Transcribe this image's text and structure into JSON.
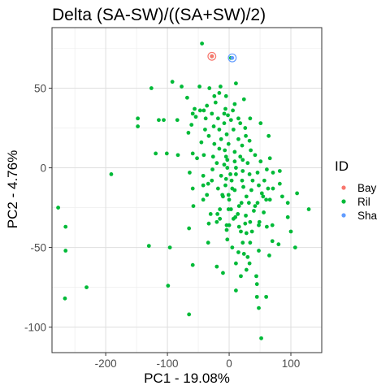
{
  "chart_data": {
    "type": "scatter",
    "title": "Delta (SA-SW)/((SA+SW)/2)",
    "xlabel": "PC1 - 19.08%",
    "ylabel": "PC2 - 4.76%",
    "xlim": [
      -287,
      150
    ],
    "ylim": [
      -116,
      88
    ],
    "xticks": [
      -200,
      -100,
      0,
      100
    ],
    "yticks": [
      -100,
      -50,
      0,
      50
    ],
    "xtick_labels": [
      "-200",
      "-100",
      "0",
      "100"
    ],
    "ytick_labels": [
      "-100",
      "-50",
      "0",
      "50"
    ],
    "grid": true,
    "legend": {
      "title": "ID",
      "position": "right"
    },
    "series": [
      {
        "name": "Bay",
        "color": "#F8766D",
        "highlight": true,
        "points": [
          [
            -28,
            70
          ]
        ]
      },
      {
        "name": "Ril",
        "color": "#00BA38",
        "highlight": false,
        "points": [
          [
            -44,
            78
          ],
          [
            -28,
            70
          ],
          [
            3,
            69
          ],
          [
            -92,
            54
          ],
          [
            -77,
            51
          ],
          [
            -48,
            51
          ],
          [
            -14,
            51
          ],
          [
            -126,
            50
          ],
          [
            -32,
            50
          ],
          [
            11,
            53
          ],
          [
            -16,
            47
          ],
          [
            -24,
            45
          ],
          [
            -5,
            45
          ],
          [
            -68,
            44
          ],
          [
            -22,
            41
          ],
          [
            24,
            43
          ],
          [
            -36,
            39
          ],
          [
            9,
            40
          ],
          [
            -56,
            37
          ],
          [
            -6,
            37
          ],
          [
            -59,
            34
          ],
          [
            -47,
            36
          ],
          [
            -41,
            36
          ],
          [
            -28,
            34
          ],
          [
            6,
            36
          ],
          [
            -8,
            34
          ],
          [
            -148,
            31
          ],
          [
            -114,
            30
          ],
          [
            -106,
            30
          ],
          [
            -84,
            30
          ],
          [
            -54,
            32
          ],
          [
            -38,
            31
          ],
          [
            -18,
            31
          ],
          [
            -2,
            33
          ],
          [
            15,
            31
          ],
          [
            34,
            31
          ],
          [
            -148,
            26
          ],
          [
            -61,
            27
          ],
          [
            -39,
            24
          ],
          [
            -25,
            26
          ],
          [
            -8,
            28
          ],
          [
            3,
            30
          ],
          [
            18,
            28
          ],
          [
            -16,
            24
          ],
          [
            -4,
            21
          ],
          [
            7,
            24
          ],
          [
            26,
            25
          ],
          [
            51,
            28
          ],
          [
            -66,
            22
          ],
          [
            -33,
            20
          ],
          [
            -13,
            18
          ],
          [
            15,
            18
          ],
          [
            27,
            20
          ],
          [
            -45,
            16
          ],
          [
            -24,
            15
          ],
          [
            -1,
            15
          ],
          [
            21,
            14
          ],
          [
            33,
            17
          ],
          [
            64,
            20
          ],
          [
            -7,
            11
          ],
          [
            -16,
            12
          ],
          [
            9,
            10
          ],
          [
            35,
            11
          ],
          [
            -59,
            9
          ],
          [
            -41,
            8
          ],
          [
            -26,
            7
          ],
          [
            -5,
            7
          ],
          [
            18,
            7
          ],
          [
            42,
            8
          ],
          [
            -52,
            6
          ],
          [
            -20,
            3
          ],
          [
            -8,
            2
          ],
          [
            -3,
            5
          ],
          [
            9,
            4
          ],
          [
            22,
            5
          ],
          [
            30,
            3
          ],
          [
            51,
            4
          ],
          [
            66,
            6
          ],
          [
            -119,
            9
          ],
          [
            -101,
            9
          ],
          [
            -83,
            8
          ],
          [
            -3,
            0
          ],
          [
            11,
            0
          ],
          [
            -27,
            -1
          ],
          [
            2,
            -4
          ],
          [
            22,
            -2
          ],
          [
            46,
            -3
          ],
          [
            61,
            -1
          ],
          [
            71,
            -3
          ],
          [
            -64,
            -3
          ],
          [
            -42,
            -5
          ],
          [
            -13,
            -5
          ],
          [
            -5,
            -7
          ],
          [
            11,
            -4
          ],
          [
            33,
            -4
          ],
          [
            82,
            -2
          ],
          [
            -191,
            -4
          ],
          [
            -28,
            -8
          ],
          [
            4,
            -8
          ],
          [
            21,
            -8
          ],
          [
            38,
            -8
          ],
          [
            57,
            -8
          ],
          [
            -42,
            -11
          ],
          [
            -34,
            -10
          ],
          [
            -6,
            -11
          ],
          [
            23,
            -12
          ],
          [
            48,
            -11
          ],
          [
            -59,
            -13
          ],
          [
            -18,
            -13
          ],
          [
            5,
            -13
          ],
          [
            63,
            -13
          ],
          [
            -36,
            -17
          ],
          [
            -11,
            -17
          ],
          [
            9,
            -14
          ],
          [
            36,
            -14
          ],
          [
            71,
            -13
          ],
          [
            -42,
            -20
          ],
          [
            -10,
            -18
          ],
          [
            28,
            -18
          ],
          [
            86,
            -18
          ],
          [
            0,
            -20
          ],
          [
            20,
            -22
          ],
          [
            46,
            -22
          ],
          [
            66,
            -20
          ],
          [
            -15,
            -26
          ],
          [
            -1,
            -26
          ],
          [
            16,
            -24
          ],
          [
            40,
            -27
          ],
          [
            -58,
            -24
          ],
          [
            -30,
            -29
          ],
          [
            -19,
            -29
          ],
          [
            27,
            -30
          ],
          [
            7,
            -32
          ],
          [
            49,
            -34
          ],
          [
            70,
            -36
          ],
          [
            -277,
            -25
          ],
          [
            -265,
            -37
          ],
          [
            -65,
            -38
          ],
          [
            -4,
            -36
          ],
          [
            16,
            -37
          ],
          [
            19,
            -40
          ],
          [
            28,
            -41
          ],
          [
            37,
            -40
          ],
          [
            48,
            -36
          ],
          [
            61,
            -37
          ],
          [
            -130,
            -49
          ],
          [
            -96,
            -50
          ],
          [
            5,
            -50
          ],
          [
            22,
            -47
          ],
          [
            34,
            -47
          ],
          [
            15,
            -53
          ],
          [
            24,
            -54
          ],
          [
            -265,
            -52
          ],
          [
            -59,
            -61
          ],
          [
            -20,
            -62
          ],
          [
            11,
            -60
          ],
          [
            33,
            -60
          ],
          [
            28,
            -64
          ],
          [
            -10,
            -66
          ],
          [
            19,
            -68
          ],
          [
            44,
            -68
          ],
          [
            -231,
            -75
          ],
          [
            -99,
            -74
          ],
          [
            11,
            -77
          ],
          [
            45,
            -73
          ],
          [
            -266,
            -82
          ],
          [
            45,
            -81
          ],
          [
            60,
            -81
          ],
          [
            48,
            -88
          ],
          [
            -65,
            -92
          ],
          [
            52,
            -107
          ],
          [
            129,
            -26
          ],
          [
            110,
            -16
          ],
          [
            26,
            -35
          ],
          [
            95,
            -31
          ],
          [
            -3,
            -45
          ],
          [
            -33,
            -35
          ],
          [
            0,
            -36
          ],
          [
            10,
            -31
          ],
          [
            56,
            -28
          ],
          [
            60,
            -20
          ],
          [
            70,
            -46
          ],
          [
            80,
            -48
          ],
          [
            100,
            -40
          ],
          [
            107,
            -50
          ],
          [
            82,
            -10
          ],
          [
            95,
            -22
          ],
          [
            65,
            -55
          ],
          [
            32,
            -22
          ],
          [
            -1,
            -17
          ],
          [
            53,
            -16
          ],
          [
            -4,
            -39
          ],
          [
            14,
            -29
          ],
          [
            42,
            -24
          ],
          [
            55,
            -18
          ],
          [
            -15,
            -32
          ],
          [
            48,
            -52
          ],
          [
            30,
            -56
          ],
          [
            -34,
            -47
          ],
          [
            -20,
            -34
          ],
          [
            3,
            -26
          ],
          [
            34,
            -34
          ]
        ]
      },
      {
        "name": "Sha",
        "color": "#619CFF",
        "highlight": true,
        "points": [
          [
            5,
            69
          ]
        ]
      }
    ]
  }
}
